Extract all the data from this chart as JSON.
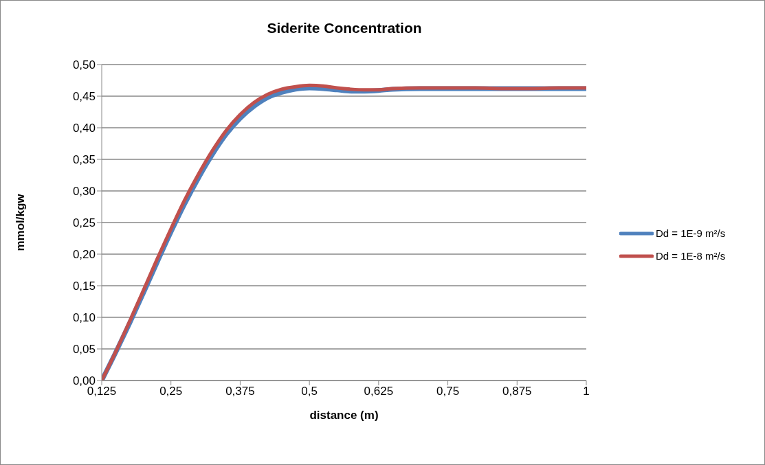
{
  "chart_data": {
    "type": "line",
    "title": "Siderite Concentration",
    "xlabel": "distance (m)",
    "ylabel": "mmol/kgw",
    "xlim": [
      0.125,
      1
    ],
    "xticks": [
      {
        "value": 0.125,
        "label": "0,125"
      },
      {
        "value": 0.25,
        "label": "0,25"
      },
      {
        "value": 0.375,
        "label": "0,375"
      },
      {
        "value": 0.5,
        "label": "0,5"
      },
      {
        "value": 0.625,
        "label": "0,625"
      },
      {
        "value": 0.75,
        "label": "0,75"
      },
      {
        "value": 0.875,
        "label": "0,875"
      },
      1
    ],
    "ylim": [
      0,
      0.5
    ],
    "yticks": [
      {
        "value": 0,
        "label": "0,00"
      },
      {
        "value": 0.05,
        "label": "0,05"
      },
      {
        "value": 0.1,
        "label": "0,10"
      },
      {
        "value": 0.15,
        "label": "0,15"
      },
      {
        "value": 0.2,
        "label": "0,20"
      },
      {
        "value": 0.25,
        "label": "0,25"
      },
      {
        "value": 0.3,
        "label": "0,30"
      },
      {
        "value": 0.35,
        "label": "0,35"
      },
      {
        "value": 0.4,
        "label": "0,40"
      },
      {
        "value": 0.45,
        "label": "0,45"
      },
      {
        "value": 0.5,
        "label": "0,50"
      }
    ],
    "grid": "y",
    "legend": "right",
    "marker": "none",
    "line_style": "solid",
    "x": [
      0.125,
      0.15,
      0.175,
      0.2,
      0.225,
      0.25,
      0.275,
      0.3,
      0.325,
      0.35,
      0.375,
      0.4,
      0.425,
      0.45,
      0.475,
      0.5,
      0.525,
      0.55,
      0.575,
      0.6,
      0.625,
      0.65,
      0.7,
      0.75,
      0.8,
      0.85,
      0.9,
      0.95,
      1
    ],
    "series": [
      {
        "name": "Dd = 1E-9 m²/s",
        "color": "#4f81bd",
        "values": [
          0,
          0.044,
          0.09,
          0.138,
          0.187,
          0.235,
          0.28,
          0.321,
          0.358,
          0.39,
          0.415,
          0.434,
          0.448,
          0.456,
          0.461,
          0.463,
          0.462,
          0.46,
          0.458,
          0.458,
          0.459,
          0.461,
          0.462,
          0.462,
          0.462,
          0.462,
          0.462,
          0.462,
          0.462
        ]
      },
      {
        "name": "Dd = 1E-8 m²/s",
        "color": "#c0504d",
        "values": [
          0,
          0.045,
          0.093,
          0.142,
          0.192,
          0.24,
          0.286,
          0.327,
          0.364,
          0.396,
          0.421,
          0.44,
          0.453,
          0.461,
          0.465,
          0.467,
          0.466,
          0.463,
          0.461,
          0.46,
          0.46,
          0.462,
          0.463,
          0.463,
          0.463,
          0.462,
          0.462,
          0.463,
          0.463
        ]
      }
    ]
  }
}
